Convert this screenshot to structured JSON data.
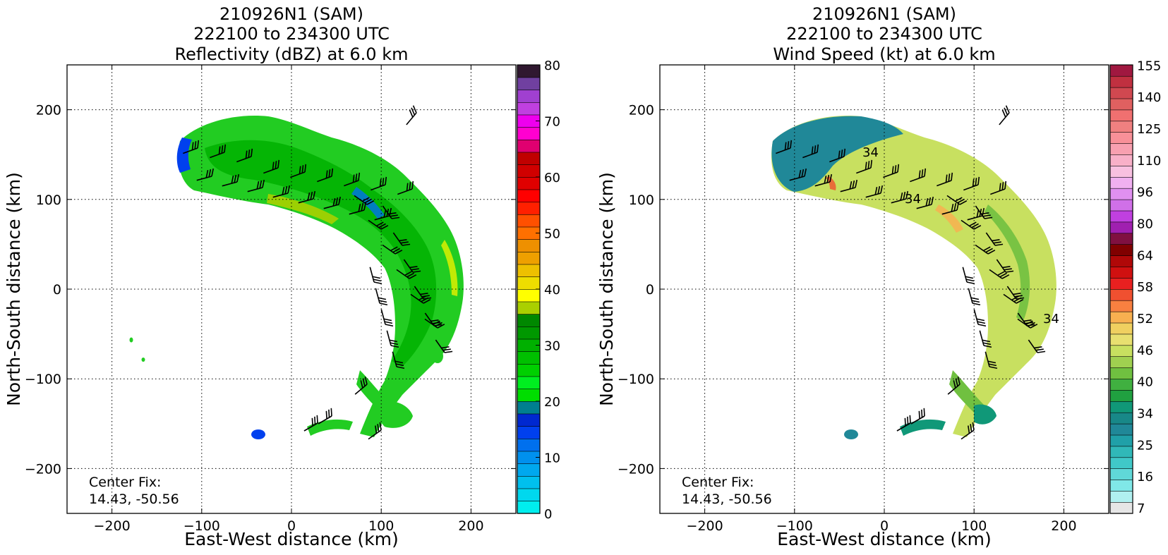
{
  "chart_data": [
    {
      "type": "heatmap",
      "panel": "reflectivity",
      "title_lines": [
        "210926N1 (SAM)",
        "222100 to 234300 UTC",
        "Reflectivity (dBZ) at 6.0 km"
      ],
      "xlabel": "East-West distance (km)",
      "ylabel": "North-South distance (km)",
      "xlim": [
        -250,
        250
      ],
      "ylim": [
        -250,
        250
      ],
      "xticks": [
        -200,
        -100,
        0,
        100,
        200
      ],
      "yticks": [
        -200,
        -100,
        0,
        100,
        200
      ],
      "grid": true,
      "annotation": [
        "Center Fix:",
        "14.43, -50.56"
      ],
      "colorbar": {
        "min": 0,
        "max": 80,
        "step": 2.5,
        "ticks": [
          0,
          10,
          20,
          30,
          40,
          50,
          60,
          70,
          80
        ],
        "colors": [
          "#00eeee",
          "#00d8ee",
          "#00c0ee",
          "#00a8ee",
          "#0090ee",
          "#0070ee",
          "#0040ee",
          "#0028d0",
          "#007f90",
          "#00dd00",
          "#00ee20",
          "#00d000",
          "#00c000",
          "#00b000",
          "#009800",
          "#008800",
          "#aad000",
          "#ffff00",
          "#eedd00",
          "#eec000",
          "#eea000",
          "#ee9000",
          "#ff7000",
          "#ff5000",
          "#ff2000",
          "#ff0000",
          "#e00000",
          "#d00000",
          "#c00000",
          "#e00070",
          "#ff00d0",
          "#ee00ee",
          "#c040e0",
          "#a040d0",
          "#7040a0",
          "#301830"
        ]
      },
      "data_description_points": []
    },
    {
      "type": "heatmap",
      "panel": "wind-speed",
      "title_lines": [
        "210926N1 (SAM)",
        "222100 to 234300 UTC",
        "Wind Speed (kt) at 6.0 km"
      ],
      "xlabel": "East-West distance (km)",
      "ylabel": "North-South distance (km)",
      "xlim": [
        -250,
        250
      ],
      "ylim": [
        -250,
        250
      ],
      "xticks": [
        -200,
        -100,
        0,
        100,
        200
      ],
      "yticks": [
        -200,
        -100,
        0,
        100,
        200
      ],
      "grid": true,
      "annotation": [
        "Center Fix:",
        "14.43, -50.56"
      ],
      "contour_labels": [
        "34",
        "34",
        "34"
      ],
      "colorbar": {
        "ticks": [
          7,
          16,
          25,
          34,
          40,
          46,
          52,
          58,
          64,
          80,
          96,
          110,
          125,
          140,
          155
        ],
        "colors": [
          "#e6e6e6",
          "#b0f0f0",
          "#80e8e8",
          "#60d8d8",
          "#40c8c8",
          "#30b8b8",
          "#20a0a8",
          "#208898",
          "#188888",
          "#109878",
          "#20a040",
          "#40b040",
          "#70c040",
          "#a0d050",
          "#c8e060",
          "#e8e070",
          "#f0d060",
          "#f8b050",
          "#f88040",
          "#f05030",
          "#e82020",
          "#d01010",
          "#b00808",
          "#800000",
          "#801040",
          "#a020b0",
          "#c040e0",
          "#d070e8",
          "#e090f0",
          "#f0b0f0",
          "#f8c0e0",
          "#f8b0c8",
          "#f8a0b0",
          "#f89098",
          "#f08080",
          "#f07070",
          "#e06060",
          "#d04850",
          "#c03040",
          "#a01840"
        ]
      }
    }
  ]
}
